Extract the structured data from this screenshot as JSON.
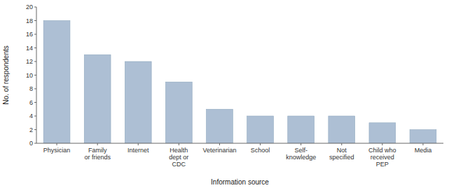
{
  "chart_data": {
    "type": "bar",
    "categories": [
      "Physician",
      "Family\nor friends",
      "Internet",
      "Health\ndept or\nCDC",
      "Veterinarian",
      "School",
      "Self-\nknowledge",
      "Not\nspecified",
      "Child who\nreceived\nPEP",
      "Media"
    ],
    "values": [
      18,
      13,
      12,
      9,
      5,
      4,
      4,
      4,
      3,
      2
    ],
    "color": "#adbfd4",
    "xlabel": "Information source",
    "ylabel": "No. of respondents",
    "ylim": [
      0,
      20
    ],
    "yticks": [
      0,
      2,
      4,
      6,
      8,
      10,
      12,
      14,
      16,
      18,
      20
    ],
    "grid": false
  }
}
